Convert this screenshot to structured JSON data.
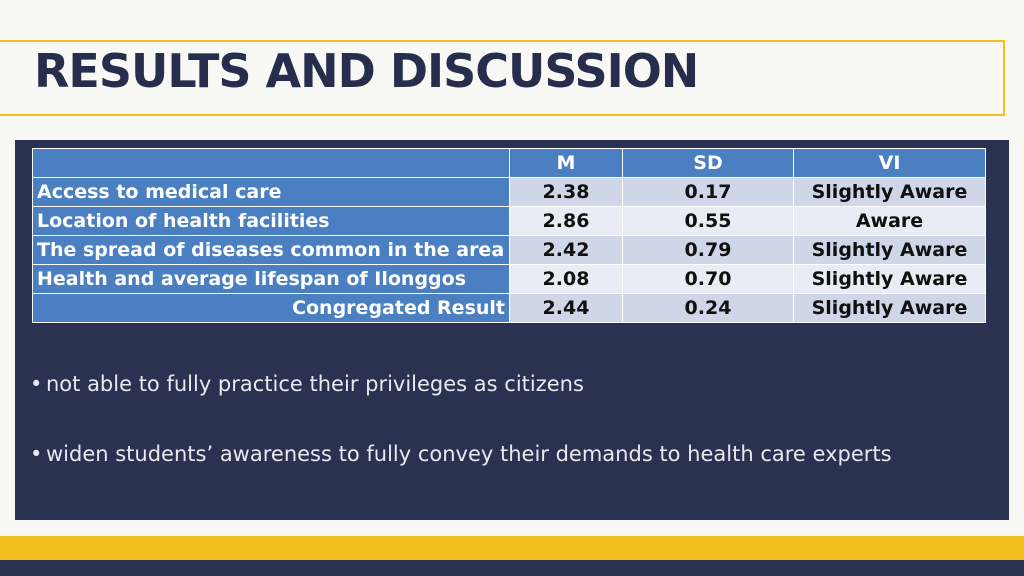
{
  "slide": {
    "title": "RESULTS AND DISCUSSION"
  },
  "table": {
    "headers": [
      "",
      "M",
      "SD",
      "VI"
    ],
    "rows": [
      {
        "label": "Access to medical care",
        "m": "2.38",
        "sd": "0.17",
        "vi": "Slightly Aware"
      },
      {
        "label": "Location of health facilities",
        "m": "2.86",
        "sd": "0.55",
        "vi": "Aware"
      },
      {
        "label": "The spread of diseases common in the area",
        "m": "2.42",
        "sd": "0.79",
        "vi": "Slightly Aware"
      },
      {
        "label": "Health and average lifespan of Ilonggos",
        "m": "2.08",
        "sd": "0.70",
        "vi": "Slightly Aware"
      },
      {
        "label": "Congregated Result",
        "m": "2.44",
        "sd": "0.24",
        "vi": "Slightly Aware"
      }
    ]
  },
  "bullets": [
    "not able to fully practice their privileges as citizens",
    "widen students’ awareness to fully convey their demands to health care experts"
  ],
  "colors": {
    "navy": "#2b3150",
    "gold": "#f2bf1e",
    "header_blue": "#4a7fc1"
  }
}
